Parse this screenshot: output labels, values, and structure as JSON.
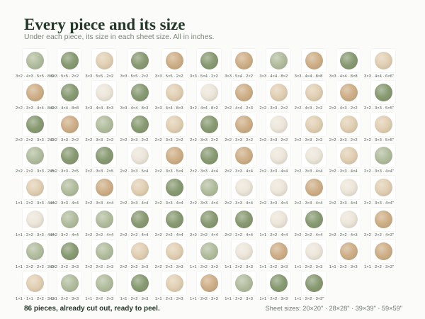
{
  "header": {
    "title": "Every piece and its size",
    "subtitle": "Under each piece, its size in each sheet size. All in inches."
  },
  "colors": {
    "background": "#fbfbfa",
    "title": "#24382a",
    "green": "#8a9c74",
    "green_light": "#b3be9f",
    "beige": "#cfb089",
    "beige_light": "#e2d0b4",
    "cream": "#ede6da"
  },
  "pieces": [
    {
      "tone": "green_light",
      "sizes": "3×2 · 4×3 · 5×5 · 8×2"
    },
    {
      "tone": "green",
      "sizes": "3×3 · 5×5 · 2×2"
    },
    {
      "tone": "beige_light",
      "sizes": "3×3 · 5×5 · 2×2"
    },
    {
      "tone": "green",
      "sizes": "3×3 · 5×5 · 2×2"
    },
    {
      "tone": "beige",
      "sizes": "3×3 · 5×5 · 2×2"
    },
    {
      "tone": "green",
      "sizes": "3×3 · 5×4 · 2×2"
    },
    {
      "tone": "beige",
      "sizes": "3×3 · 5×4 · 2×2"
    },
    {
      "tone": "green_light",
      "sizes": "3×3 · 4×4 · 8×2"
    },
    {
      "tone": "beige",
      "sizes": "3×3 · 4×4 · 8×8"
    },
    {
      "tone": "green",
      "sizes": "3×3 · 4×4 · 8×8"
    },
    {
      "tone": "beige_light",
      "sizes": "3×3 · 4×4 · 6×6\""
    },
    {
      "tone": "beige",
      "sizes": "2×2 · 3×3 · 4×4 · 8×2"
    },
    {
      "tone": "green",
      "sizes": "3×3 · 4×4 · 8×8"
    },
    {
      "tone": "cream",
      "sizes": "3×3 · 4×4 · 8×3"
    },
    {
      "tone": "green",
      "sizes": "3×3 · 4×4 · 8×3"
    },
    {
      "tone": "beige_light",
      "sizes": "3×3 · 4×4 · 8×3"
    },
    {
      "tone": "cream",
      "sizes": "3×2 · 4×4 · 8×2"
    },
    {
      "tone": "beige",
      "sizes": "2×2 · 4×4 · 2×3"
    },
    {
      "tone": "beige_light",
      "sizes": "2×2 · 3×3 · 2×2"
    },
    {
      "tone": "beige_light",
      "sizes": "2×2 · 4×3 · 2×2"
    },
    {
      "tone": "beige",
      "sizes": "2×2 · 4×3 · 2×2"
    },
    {
      "tone": "green",
      "sizes": "2×2 · 3×3 · 5×5\""
    },
    {
      "tone": "green",
      "sizes": "2×2 · 2×2 · 3×3 · 2×2"
    },
    {
      "tone": "beige",
      "sizes": "2×2 · 3×3 · 2×2"
    },
    {
      "tone": "green_light",
      "sizes": "2×2 · 3×3 · 2×2"
    },
    {
      "tone": "green",
      "sizes": "2×2 · 3×3 · 2×2"
    },
    {
      "tone": "beige_light",
      "sizes": "2×2 · 3×3 · 2×2"
    },
    {
      "tone": "green",
      "sizes": "2×2 · 3×3 · 2×2"
    },
    {
      "tone": "beige",
      "sizes": "2×2 · 3×3 · 2×2"
    },
    {
      "tone": "cream",
      "sizes": "2×2 · 3×3 · 2×2"
    },
    {
      "tone": "beige_light",
      "sizes": "2×2 · 3×3 · 2×2"
    },
    {
      "tone": "beige_light",
      "sizes": "2×2 · 3×3 · 2×2"
    },
    {
      "tone": "beige_light",
      "sizes": "2×2 · 3×3 · 5×5\""
    },
    {
      "tone": "green_light",
      "sizes": "2×2 · 2×2 · 3×3 · 2×5"
    },
    {
      "tone": "green",
      "sizes": "2×2 · 3×3 · 2×5"
    },
    {
      "tone": "green",
      "sizes": "2×2 · 3×3 · 2×5"
    },
    {
      "tone": "cream",
      "sizes": "2×2 · 3×3 · 5×4"
    },
    {
      "tone": "beige",
      "sizes": "2×2 · 3×3 · 5×4"
    },
    {
      "tone": "green",
      "sizes": "2×2 · 3×3 · 4×4"
    },
    {
      "tone": "beige",
      "sizes": "2×2 · 3×3 · 4×4"
    },
    {
      "tone": "cream",
      "sizes": "2×2 · 3×3 · 4×4"
    },
    {
      "tone": "cream",
      "sizes": "2×2 · 3×3 · 4×4"
    },
    {
      "tone": "beige_light",
      "sizes": "2×2 · 3×3 · 4×4"
    },
    {
      "tone": "green_light",
      "sizes": "2×2 · 3×3 · 4×4\""
    },
    {
      "tone": "beige_light",
      "sizes": "1×1 · 2×2 · 3×3 · 4×4"
    },
    {
      "tone": "green_light",
      "sizes": "2×2 · 3×3 · 4×4"
    },
    {
      "tone": "beige",
      "sizes": "2×2 · 3×3 · 4×4"
    },
    {
      "tone": "beige_light",
      "sizes": "2×2 · 3×3 · 4×4"
    },
    {
      "tone": "green",
      "sizes": "2×2 · 3×3 · 4×4"
    },
    {
      "tone": "green_light",
      "sizes": "2×2 · 3×3 · 4×4"
    },
    {
      "tone": "cream",
      "sizes": "2×2 · 3×3 · 4×4"
    },
    {
      "tone": "cream",
      "sizes": "2×2 · 3×3 · 4×4"
    },
    {
      "tone": "beige",
      "sizes": "2×2 · 3×3 · 4×4"
    },
    {
      "tone": "cream",
      "sizes": "2×2 · 3×3 · 4×4"
    },
    {
      "tone": "beige_light",
      "sizes": "2×2 · 3×3 · 4×4\""
    },
    {
      "tone": "cream",
      "sizes": "1×1 · 2×2 · 3×3 · 4×4"
    },
    {
      "tone": "green_light",
      "sizes": "2×2 · 3×2 · 4×4"
    },
    {
      "tone": "green_light",
      "sizes": "2×2 · 2×2 · 4×4"
    },
    {
      "tone": "green",
      "sizes": "2×2 · 2×2 · 4×4"
    },
    {
      "tone": "green",
      "sizes": "2×2 · 2×2 · 4×4"
    },
    {
      "tone": "green",
      "sizes": "2×2 · 2×2 · 4×4"
    },
    {
      "tone": "green",
      "sizes": "2×2 · 2×2 · 4×4"
    },
    {
      "tone": "cream",
      "sizes": "1×1 · 2×2 · 4×4"
    },
    {
      "tone": "green",
      "sizes": "2×2 · 2×2 · 4×4"
    },
    {
      "tone": "cream",
      "sizes": "2×2 · 2×2 · 4×3"
    },
    {
      "tone": "beige",
      "sizes": "2×2 · 2×2 · 4×3\""
    },
    {
      "tone": "green_light",
      "sizes": "1×1 · 2×2 · 2×2 · 3×3"
    },
    {
      "tone": "green",
      "sizes": "2×2 · 2×2 · 3×3"
    },
    {
      "tone": "green_light",
      "sizes": "2×2 · 2×2 · 3×3"
    },
    {
      "tone": "beige_light",
      "sizes": "2×2 · 2×2 · 3×3"
    },
    {
      "tone": "beige_light",
      "sizes": "2×2 · 2×2 · 3×3"
    },
    {
      "tone": "green_light",
      "sizes": "1×1 · 2×2 · 3×3"
    },
    {
      "tone": "cream",
      "sizes": "1×1 · 2×2 · 3×3"
    },
    {
      "tone": "beige",
      "sizes": "1×1 · 2×2 · 3×3"
    },
    {
      "tone": "cream",
      "sizes": "1×1 · 2×2 · 3×3"
    },
    {
      "tone": "beige",
      "sizes": "1×1 · 2×2 · 3×3"
    },
    {
      "tone": "beige",
      "sizes": "1×1 · 2×2 · 3×3\""
    },
    {
      "tone": "beige_light",
      "sizes": "1×1 · 1×1 · 2×2 · 3×3"
    },
    {
      "tone": "green_light",
      "sizes": "1×1 · 2×2 · 3×3"
    },
    {
      "tone": "green_light",
      "sizes": "1×1 · 2×2 · 3×3"
    },
    {
      "tone": "green",
      "sizes": "1×1 · 2×2 · 3×3"
    },
    {
      "tone": "beige_light",
      "sizes": "1×1 · 2×2 · 3×3"
    },
    {
      "tone": "beige",
      "sizes": "1×1 · 2×2 · 3×3"
    },
    {
      "tone": "green_light",
      "sizes": "1×1 · 2×2 · 3×3"
    },
    {
      "tone": "green",
      "sizes": "1×1 · 2×2 · 3×3"
    },
    {
      "tone": "green",
      "sizes": "1×1 · 2×2 · 3×3\""
    }
  ],
  "footer": {
    "summary": "86 pieces, already cut out, ready to peel.",
    "sheet_sizes": "Sheet sizes: 20×20\" · 28×28\" · 39×39\" · 59×59\""
  }
}
